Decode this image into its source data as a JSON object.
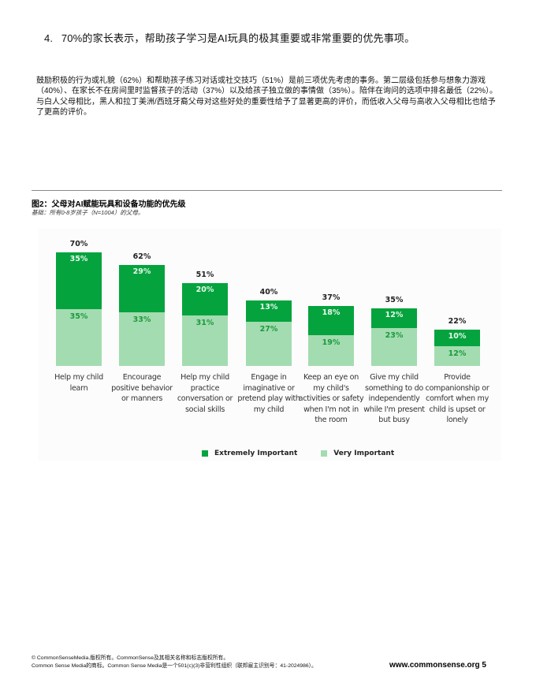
{
  "heading": {
    "number": "4.",
    "text": "70%的家长表示，帮助孩子学习是AI玩具的极其重要或非常重要的优先事项。"
  },
  "body_text": "鼓励积极的行为或礼貌（62%）和帮助孩子练习对话或社交技巧（51%）是前三项优先考虑的事务。第二层级包括参与想象力游戏（40%）、在家长不在房间里时监督孩子的活动（37%）以及给孩子独立做的事情做（35%）。陪伴在询问的选项中排名最低（22%）。与白人父母相比，黑人和拉丁美洲/西班牙裔父母对这些好处的重要性给予了显著更高的评价，而低收入父母与高收入父母相比也给予了更高的评价。",
  "figure": {
    "title": "图2：父母对AI赋能玩具和设备功能的优先级",
    "subtitle": "基础：所有0-8岁孩子（N=1004）的父母。"
  },
  "colors": {
    "extremely_important": "#05a33e",
    "very_important": "#a3dcb0"
  },
  "chart_data": {
    "type": "bar",
    "stacked": true,
    "title": "图2：父母对AI赋能玩具和设备功能的优先级",
    "subtitle": "基础：所有0-8岁孩子（N=1004）的父母。",
    "xlabel": "",
    "ylabel": "",
    "ylim": [
      0,
      100
    ],
    "grid": false,
    "legend_position": "bottom",
    "categories": [
      "Help my child learn",
      "Encourage positive behavior or manners",
      "Help my child practice conversation or social skills",
      "Engage in imaginative or pretend play with my child",
      "Keep an eye on my child's activities or safety when I'm not in the room",
      "Give my child something to do independently while I'm present but busy",
      "Provide companionship or comfort when my child is upset or lonely"
    ],
    "series": [
      {
        "name": "Extremely Important",
        "values": [
          35,
          29,
          20,
          13,
          18,
          12,
          10
        ]
      },
      {
        "name": "Very Important",
        "values": [
          35,
          33,
          31,
          27,
          19,
          23,
          12
        ]
      }
    ],
    "totals": [
      70,
      62,
      51,
      40,
      37,
      35,
      22
    ]
  },
  "bars": [
    {
      "total": "70%",
      "extreme": "35%",
      "very": "35%",
      "label": "Help my child learn"
    },
    {
      "total": "62%",
      "extreme": "29%",
      "very": "33%",
      "label": "Encourage positive behavior or manners"
    },
    {
      "total": "51%",
      "extreme": "20%",
      "very": "31%",
      "label": "Help my child practice conversation or social skills"
    },
    {
      "total": "40%",
      "extreme": "13%",
      "very": "27%",
      "label": "Engage in imaginative or pretend play with my child"
    },
    {
      "total": "37%",
      "extreme": "18%",
      "very": "19%",
      "label": "Keep an eye on my child's activities or safety when I'm not in the room"
    },
    {
      "total": "35%",
      "extreme": "12%",
      "very": "23%",
      "label": "Give my child something to do independently while I'm present but busy"
    },
    {
      "total": "22%",
      "extreme": "10%",
      "very": "12%",
      "label": "Provide companionship or comfort when my child is upset or lonely"
    }
  ],
  "legend": {
    "extreme_label": "Extremely Important",
    "very_label": "Very Important"
  },
  "footer": {
    "line1": "© CommonSenseMedia.版权所有。CommonSense及其相关名称和标志版权所有。",
    "line2": "Common Sense Media的商标。Common Sense Media是一个501(c)(3)非营利性组织（联邦雇主识别号：41-2024986）。",
    "url_page": "www.commonsense.org 5"
  }
}
